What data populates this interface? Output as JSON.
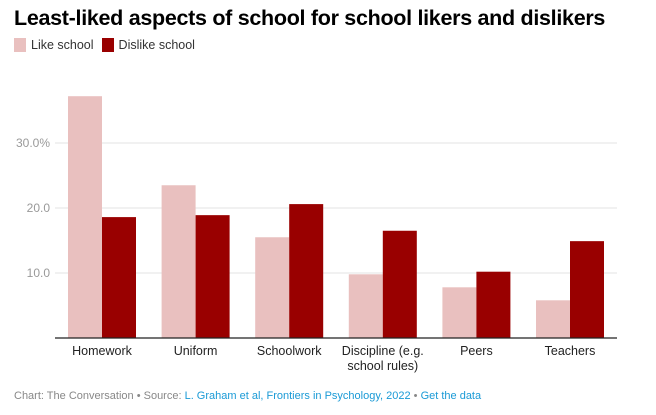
{
  "title": "Least-liked aspects of school for school likers and dislikers",
  "legend": [
    {
      "label": "Like school",
      "color": "#e9c0bf"
    },
    {
      "label": "Dislike school",
      "color": "#990000"
    }
  ],
  "footer": {
    "chart_credit": "Chart: The Conversation",
    "separator": " • ",
    "source_prefix": "Source: ",
    "source_link": "L. Graham et al, Frontiers in Psychology, 2022",
    "get_data": "Get the data"
  },
  "chart_data": {
    "type": "bar",
    "title": "Least-liked aspects of school for school likers and dislikers",
    "xlabel": "",
    "ylabel": "",
    "categories": [
      [
        "Homework"
      ],
      [
        "Uniform"
      ],
      [
        "Schoolwork"
      ],
      [
        "Discipline (e.g.",
        "school rules)"
      ],
      [
        "Peers"
      ],
      [
        "Teachers"
      ]
    ],
    "series": [
      {
        "name": "Like school",
        "color": "#e9c0bf",
        "values": [
          37.2,
          23.5,
          15.5,
          9.8,
          7.8,
          5.8
        ]
      },
      {
        "name": "Dislike school",
        "color": "#990000",
        "values": [
          18.6,
          18.9,
          20.6,
          16.5,
          10.2,
          14.9
        ]
      }
    ],
    "yticks": [
      10,
      20,
      30
    ],
    "ytick_labels": [
      "10.0",
      "20.0",
      "30.0%"
    ],
    "ylim": [
      0,
      38
    ],
    "grid": true,
    "legend_position": "top-left"
  }
}
